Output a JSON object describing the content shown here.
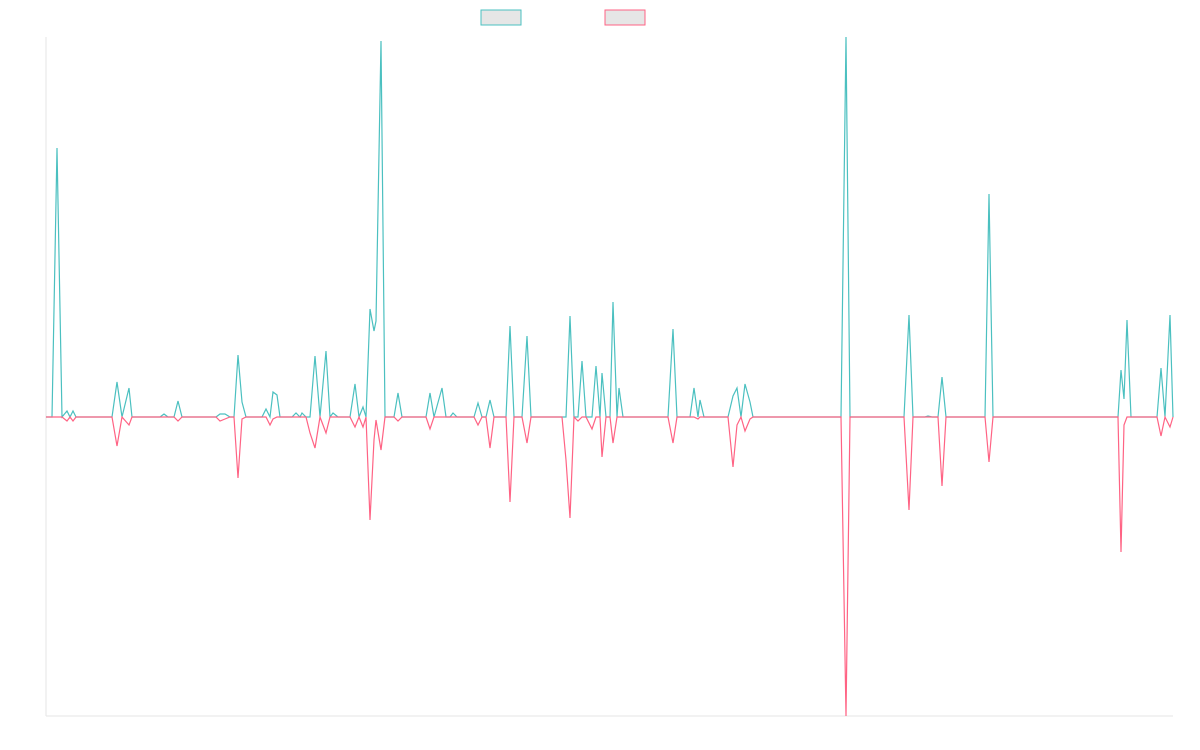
{
  "chart_data": {
    "type": "line",
    "x": [
      0,
      6,
      11,
      16,
      21,
      24,
      27,
      30,
      66,
      71,
      76,
      83,
      86,
      114,
      118,
      122,
      128,
      132,
      136,
      170,
      174,
      179,
      184,
      188,
      192,
      196,
      200,
      216,
      220,
      224,
      227,
      231,
      234,
      246,
      250,
      254,
      256,
      260,
      264,
      269,
      274,
      280,
      284,
      287,
      292,
      304,
      309,
      313,
      317,
      320,
      324,
      328,
      330,
      335,
      339,
      348,
      352,
      356,
      380,
      384,
      388,
      396,
      400,
      404,
      407,
      411,
      428,
      432,
      436,
      440,
      444,
      448,
      460,
      464,
      468,
      476,
      481,
      485,
      516,
      520,
      524,
      528,
      532,
      536,
      540,
      546,
      550,
      554,
      556,
      560,
      564,
      567,
      571,
      573,
      577,
      622,
      627,
      631,
      644,
      648,
      652,
      654,
      658,
      682,
      687,
      691,
      695,
      699,
      704,
      707,
      734,
      795,
      800,
      804,
      858,
      863,
      867,
      879,
      882,
      886,
      892,
      896,
      900,
      939,
      943,
      947,
      1068,
      1072,
      1075,
      1078,
      1081,
      1085,
      1111,
      1115,
      1119,
      1124,
      1127
    ],
    "series": [
      {
        "color": "#4bc0c0",
        "values": [
          0,
          0,
          269,
          0,
          6,
          0,
          6,
          0,
          0,
          35,
          0,
          29,
          0,
          0,
          3,
          0,
          0,
          16,
          0,
          0,
          3,
          3,
          0,
          0,
          62,
          15,
          0,
          0,
          8,
          0,
          25,
          22,
          0,
          0,
          4,
          0,
          4,
          0,
          0,
          61,
          0,
          66,
          0,
          4,
          0,
          0,
          33,
          0,
          10,
          0,
          108,
          86,
          96,
          376,
          0,
          0,
          24,
          0,
          0,
          24,
          0,
          29,
          0,
          0,
          4,
          0,
          0,
          14,
          0,
          0,
          17,
          0,
          0,
          91,
          0,
          0,
          81,
          0,
          0,
          0,
          101,
          0,
          0,
          56,
          0,
          0,
          51,
          0,
          44,
          0,
          0,
          115,
          0,
          29,
          0,
          0,
          88,
          0,
          0,
          29,
          0,
          17,
          0,
          0,
          21,
          29,
          0,
          33,
          15,
          0,
          0,
          0,
          380,
          0,
          0,
          102,
          0,
          0,
          1,
          0,
          0,
          40,
          0,
          0,
          223,
          0,
          0,
          0,
          47,
          18,
          97,
          0,
          0,
          49,
          0,
          102,
          0
        ]
      },
      {
        "color": "#ff6384",
        "values": [
          0,
          0,
          0,
          0,
          -4,
          0,
          -4,
          0,
          0,
          -29,
          0,
          -8,
          0,
          0,
          0,
          0,
          0,
          -4,
          0,
          0,
          -4,
          -2,
          0,
          0,
          -61,
          -2,
          0,
          0,
          0,
          -8,
          -2,
          0,
          0,
          0,
          0,
          0,
          0,
          0,
          -16,
          -31,
          0,
          -16,
          0,
          0,
          0,
          0,
          -10,
          0,
          -10,
          0,
          -103,
          -23,
          -3,
          -33,
          0,
          0,
          -4,
          0,
          0,
          -12,
          0,
          0,
          0,
          0,
          0,
          0,
          0,
          -8,
          0,
          0,
          -31,
          0,
          0,
          -85,
          0,
          0,
          -26,
          0,
          0,
          -43,
          -101,
          0,
          -4,
          0,
          0,
          -12,
          0,
          0,
          -40,
          0,
          0,
          -26,
          0,
          0,
          0,
          0,
          -26,
          0,
          0,
          0,
          -2,
          0,
          0,
          0,
          -50,
          -8,
          0,
          -14,
          -2,
          0,
          0,
          0,
          -299,
          0,
          0,
          -93,
          0,
          0,
          0,
          0,
          0,
          -69,
          0,
          0,
          -45,
          0,
          0,
          0,
          -135,
          -8,
          0,
          0,
          0,
          -19,
          0,
          -10,
          0
        ]
      }
    ],
    "xlim": [
      0,
      1127
    ],
    "ylim": [
      -299,
      380
    ]
  }
}
